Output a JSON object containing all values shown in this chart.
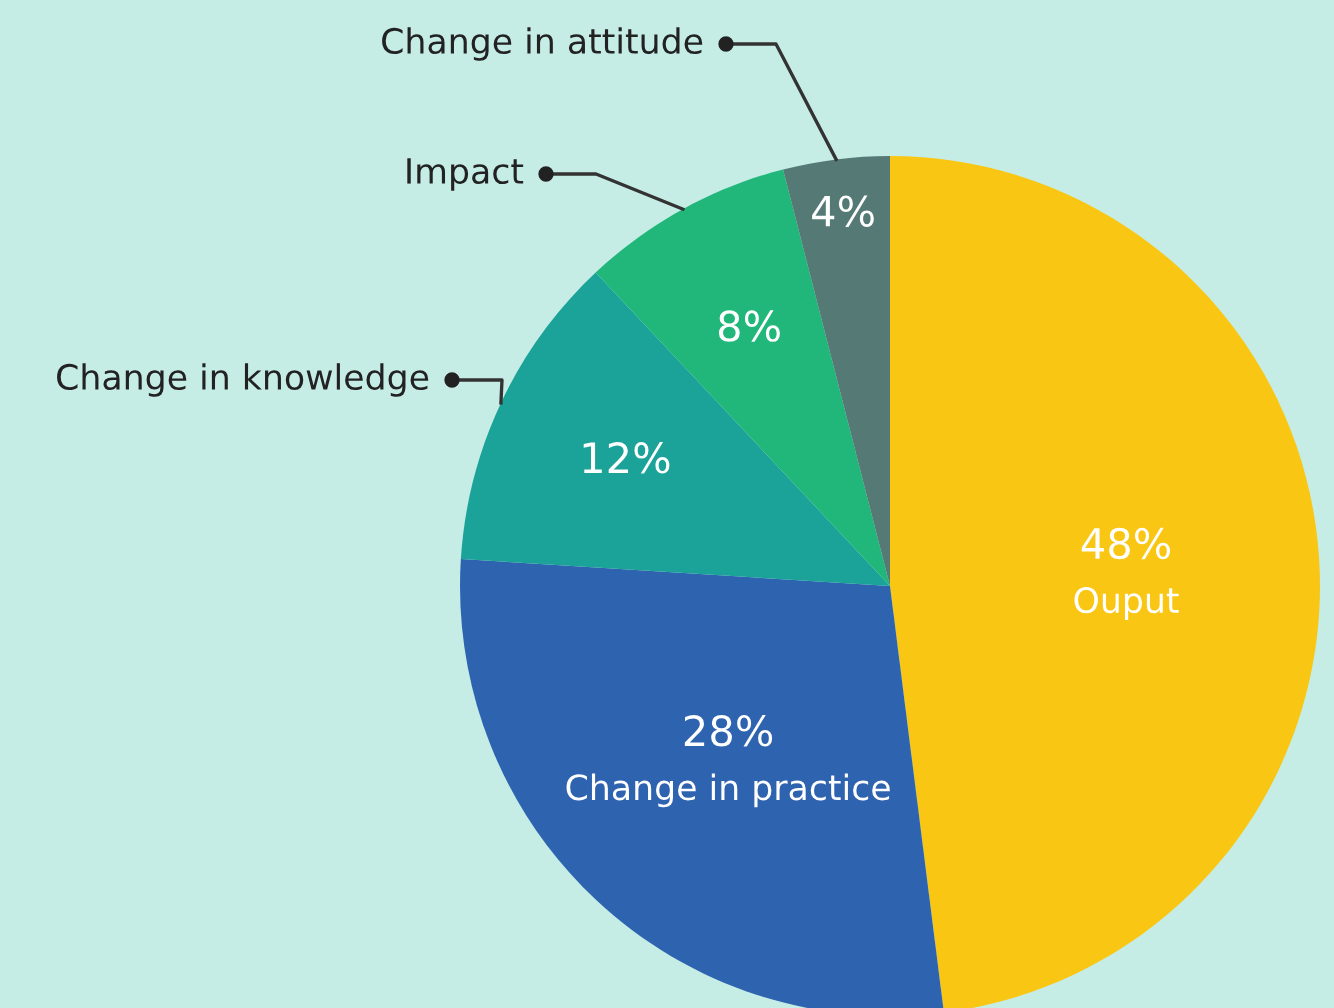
{
  "chart_data": {
    "type": "pie",
    "categories": [
      "Ouput",
      "Change in practice",
      "Change in knowledge",
      "Impact",
      "Change in attitude"
    ],
    "values": [
      48,
      28,
      12,
      8,
      4
    ],
    "value_labels": [
      "48%",
      "28%",
      "12%",
      "8%",
      "4%"
    ],
    "colors": [
      "#f9c613",
      "#2e63b0",
      "#1ba39a",
      "#22b77a",
      "#557a75"
    ]
  }
}
